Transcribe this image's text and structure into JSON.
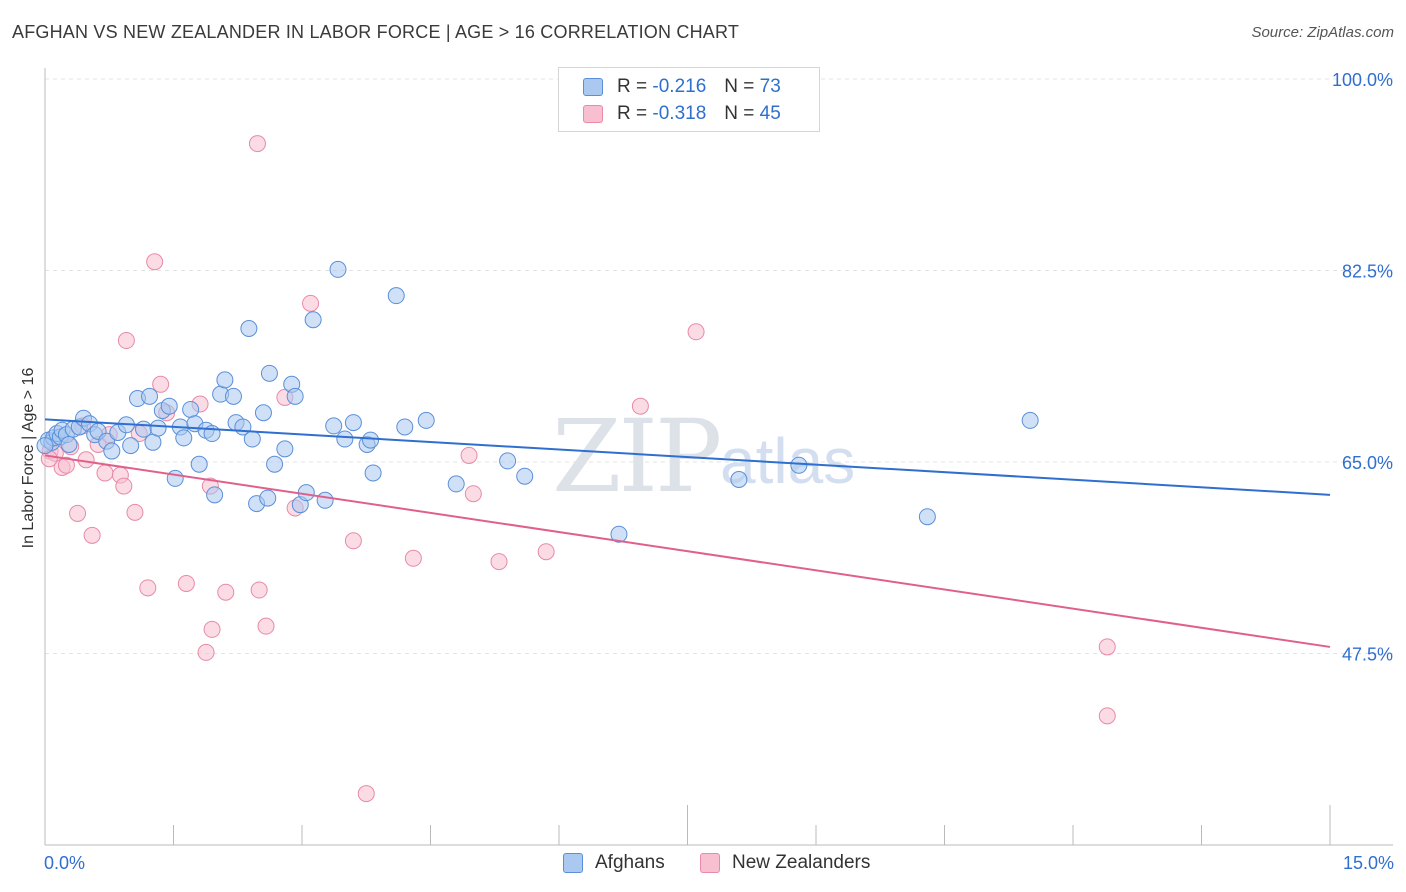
{
  "header": {
    "title": "AFGHAN VS NEW ZEALANDER IN LABOR FORCE | AGE > 16 CORRELATION CHART",
    "source": "Source: ZipAtlas.com"
  },
  "watermark": {
    "zip": "ZIP",
    "atlas": "atlas"
  },
  "legend": {
    "rows": [
      {
        "r_label": "R =",
        "r_value": "-0.216",
        "n_label": "N =",
        "n_value": "73"
      },
      {
        "r_label": "R =",
        "r_value": "-0.318",
        "n_label": "N =",
        "n_value": "45"
      }
    ]
  },
  "bottom_legend": {
    "afghans": "Afghans",
    "new_zealanders": "New Zealanders"
  },
  "colors": {
    "afghans_fill": "#aac8f0",
    "afghans_stroke": "#5a8fd8",
    "afghans_line": "#2f6fcf",
    "nz_fill": "#f7bfd0",
    "nz_stroke": "#e88aa8",
    "nz_line": "#e0608d",
    "tick_label": "#2f6fcf",
    "grid": "#e3e3e3"
  },
  "chart_data": {
    "type": "scatter",
    "title": "AFGHAN VS NEW ZEALANDER IN LABOR FORCE | AGE > 16 CORRELATION CHART",
    "xlabel": "",
    "ylabel": "In Labor Force | Age > 16",
    "xlim": [
      0,
      15
    ],
    "ylim": [
      30,
      100
    ],
    "x_tick_labels": [
      "0.0%",
      "15.0%"
    ],
    "y_ticks": [
      47.5,
      65.0,
      82.5,
      100.0
    ],
    "y_tick_labels": [
      "47.5%",
      "65.0%",
      "82.5%",
      "100.0%"
    ],
    "grid": true,
    "series": [
      {
        "name": "Afghans",
        "r": -0.216,
        "n": 73,
        "trend": {
          "x": [
            0.0,
            15.0
          ],
          "y": [
            68.9,
            62.0
          ]
        },
        "points": [
          [
            0.04,
            67.0
          ],
          [
            0.08,
            66.8
          ],
          [
            0.1,
            67.2
          ],
          [
            0.14,
            67.6
          ],
          [
            0.18,
            67.3
          ],
          [
            0.2,
            67.9
          ],
          [
            0.25,
            67.5
          ],
          [
            0.28,
            66.6
          ],
          [
            0.33,
            68.0
          ],
          [
            0.4,
            68.2
          ],
          [
            0.45,
            69.0
          ],
          [
            0.52,
            68.5
          ],
          [
            0.58,
            67.5
          ],
          [
            0.62,
            67.8
          ],
          [
            0.72,
            66.9
          ],
          [
            0.78,
            66.0
          ],
          [
            0.85,
            67.7
          ],
          [
            0.95,
            68.4
          ],
          [
            1.0,
            66.5
          ],
          [
            1.08,
            70.8
          ],
          [
            1.15,
            68.0
          ],
          [
            1.22,
            71.0
          ],
          [
            1.26,
            66.8
          ],
          [
            1.32,
            68.1
          ],
          [
            1.37,
            69.7
          ],
          [
            1.45,
            70.1
          ],
          [
            1.52,
            63.5
          ],
          [
            1.58,
            68.2
          ],
          [
            1.62,
            67.2
          ],
          [
            1.7,
            69.8
          ],
          [
            1.75,
            68.5
          ],
          [
            1.8,
            64.8
          ],
          [
            1.88,
            67.9
          ],
          [
            1.95,
            67.6
          ],
          [
            1.98,
            62.0
          ],
          [
            2.05,
            71.2
          ],
          [
            2.1,
            72.5
          ],
          [
            2.2,
            71.0
          ],
          [
            2.23,
            68.6
          ],
          [
            2.31,
            68.2
          ],
          [
            2.38,
            77.2
          ],
          [
            2.42,
            67.1
          ],
          [
            2.47,
            61.2
          ],
          [
            2.55,
            69.5
          ],
          [
            2.6,
            61.7
          ],
          [
            2.62,
            73.1
          ],
          [
            2.68,
            64.8
          ],
          [
            2.8,
            66.2
          ],
          [
            2.88,
            72.1
          ],
          [
            2.92,
            71.0
          ],
          [
            2.98,
            61.1
          ],
          [
            3.05,
            62.2
          ],
          [
            3.13,
            78.0
          ],
          [
            3.27,
            61.5
          ],
          [
            3.37,
            68.3
          ],
          [
            3.42,
            82.6
          ],
          [
            3.5,
            67.1
          ],
          [
            3.6,
            68.6
          ],
          [
            3.76,
            66.6
          ],
          [
            3.8,
            67.0
          ],
          [
            3.83,
            64.0
          ],
          [
            4.1,
            80.2
          ],
          [
            4.2,
            68.2
          ],
          [
            4.45,
            68.8
          ],
          [
            4.8,
            63.0
          ],
          [
            5.4,
            65.1
          ],
          [
            5.6,
            63.7
          ],
          [
            6.7,
            58.4
          ],
          [
            8.1,
            63.4
          ],
          [
            8.8,
            64.7
          ],
          [
            10.3,
            60.0
          ],
          [
            11.5,
            68.8
          ],
          [
            0.0,
            66.5
          ]
        ]
      },
      {
        "name": "New Zealanders",
        "r": -0.318,
        "n": 45,
        "trend": {
          "x": [
            0.0,
            15.0
          ],
          "y": [
            65.6,
            48.1
          ]
        },
        "points": [
          [
            0.06,
            66.0
          ],
          [
            0.12,
            65.8
          ],
          [
            0.2,
            64.5
          ],
          [
            0.25,
            64.7
          ],
          [
            0.3,
            66.4
          ],
          [
            0.38,
            60.3
          ],
          [
            0.44,
            68.3
          ],
          [
            0.48,
            65.2
          ],
          [
            0.55,
            58.3
          ],
          [
            0.62,
            66.6
          ],
          [
            0.7,
            64.0
          ],
          [
            0.75,
            67.5
          ],
          [
            0.88,
            63.8
          ],
          [
            0.92,
            62.8
          ],
          [
            0.95,
            76.1
          ],
          [
            1.05,
            60.4
          ],
          [
            1.1,
            67.6
          ],
          [
            1.2,
            53.5
          ],
          [
            1.28,
            83.3
          ],
          [
            1.35,
            72.1
          ],
          [
            1.42,
            69.5
          ],
          [
            1.65,
            53.9
          ],
          [
            1.81,
            70.3
          ],
          [
            1.88,
            47.6
          ],
          [
            1.93,
            62.8
          ],
          [
            1.95,
            49.7
          ],
          [
            2.11,
            53.1
          ],
          [
            2.48,
            94.1
          ],
          [
            2.5,
            53.3
          ],
          [
            2.58,
            50.0
          ],
          [
            2.8,
            70.9
          ],
          [
            2.92,
            60.8
          ],
          [
            3.1,
            79.5
          ],
          [
            3.6,
            57.8
          ],
          [
            3.75,
            34.7
          ],
          [
            4.3,
            56.2
          ],
          [
            4.95,
            65.6
          ],
          [
            5.0,
            62.1
          ],
          [
            5.3,
            55.9
          ],
          [
            5.85,
            56.8
          ],
          [
            6.95,
            70.1
          ],
          [
            7.6,
            76.9
          ],
          [
            12.4,
            48.1
          ],
          [
            12.4,
            41.8
          ],
          [
            0.05,
            65.3
          ]
        ]
      }
    ]
  }
}
